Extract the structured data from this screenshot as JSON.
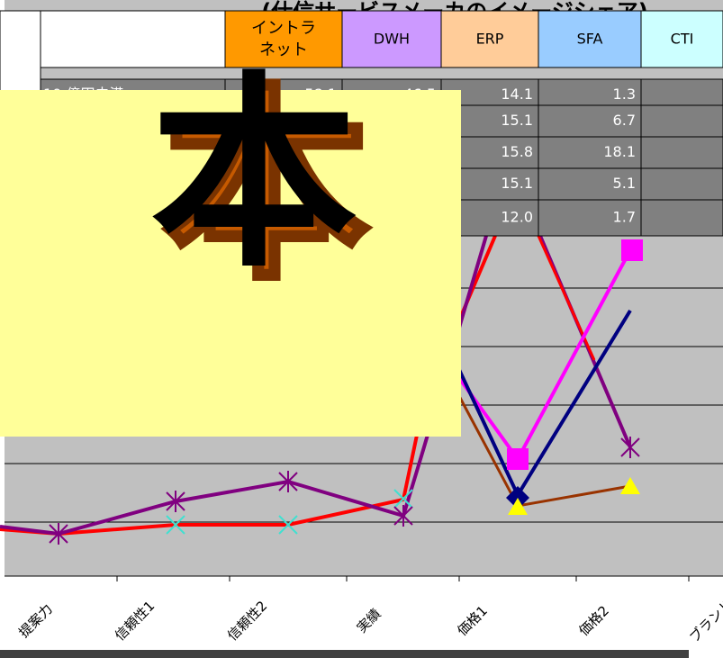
{
  "title": "(仕信サービスメーカのイメージシェア)",
  "table": {
    "header": [
      "イントラネット",
      "DWH",
      "ERP",
      "SFA",
      "CTI"
    ],
    "rows": [
      {
        "label": "10 億円未満",
        "values": [
          "58.1",
          "46.5",
          "14.1",
          "1.3"
        ]
      },
      {
        "label": "",
        "values": [
          "15.1",
          "6.7"
        ]
      },
      {
        "label": "",
        "values": [
          "15.8",
          "18.1"
        ]
      },
      {
        "label": "",
        "values": [
          "15.1",
          "5.1"
        ]
      },
      {
        "label": "",
        "values": [
          "12.0",
          "1.7"
        ]
      }
    ]
  },
  "overlay": {
    "text": "本"
  },
  "x_labels": [
    "提案力",
    "信頼性1",
    "信頼性2",
    "実績",
    "価格1",
    "価格2",
    "ブランド"
  ]
}
